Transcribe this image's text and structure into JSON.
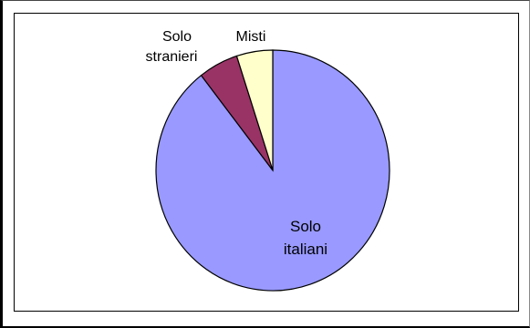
{
  "chart_data": {
    "type": "pie",
    "title": "",
    "categories": [
      "Solo italiani",
      "Solo stranieri",
      "Misti"
    ],
    "values": [
      89.5,
      5.5,
      5.0
    ],
    "colors": [
      "#9999ff",
      "#993366",
      "#ffffcc"
    ],
    "start_angle_deg": 0,
    "direction": "clockwise",
    "legend": "none",
    "labels": {
      "italiani": [
        "Solo",
        "italiani"
      ],
      "stranieri": [
        "Solo",
        "stranieri"
      ],
      "misti": [
        "Misti"
      ]
    }
  }
}
